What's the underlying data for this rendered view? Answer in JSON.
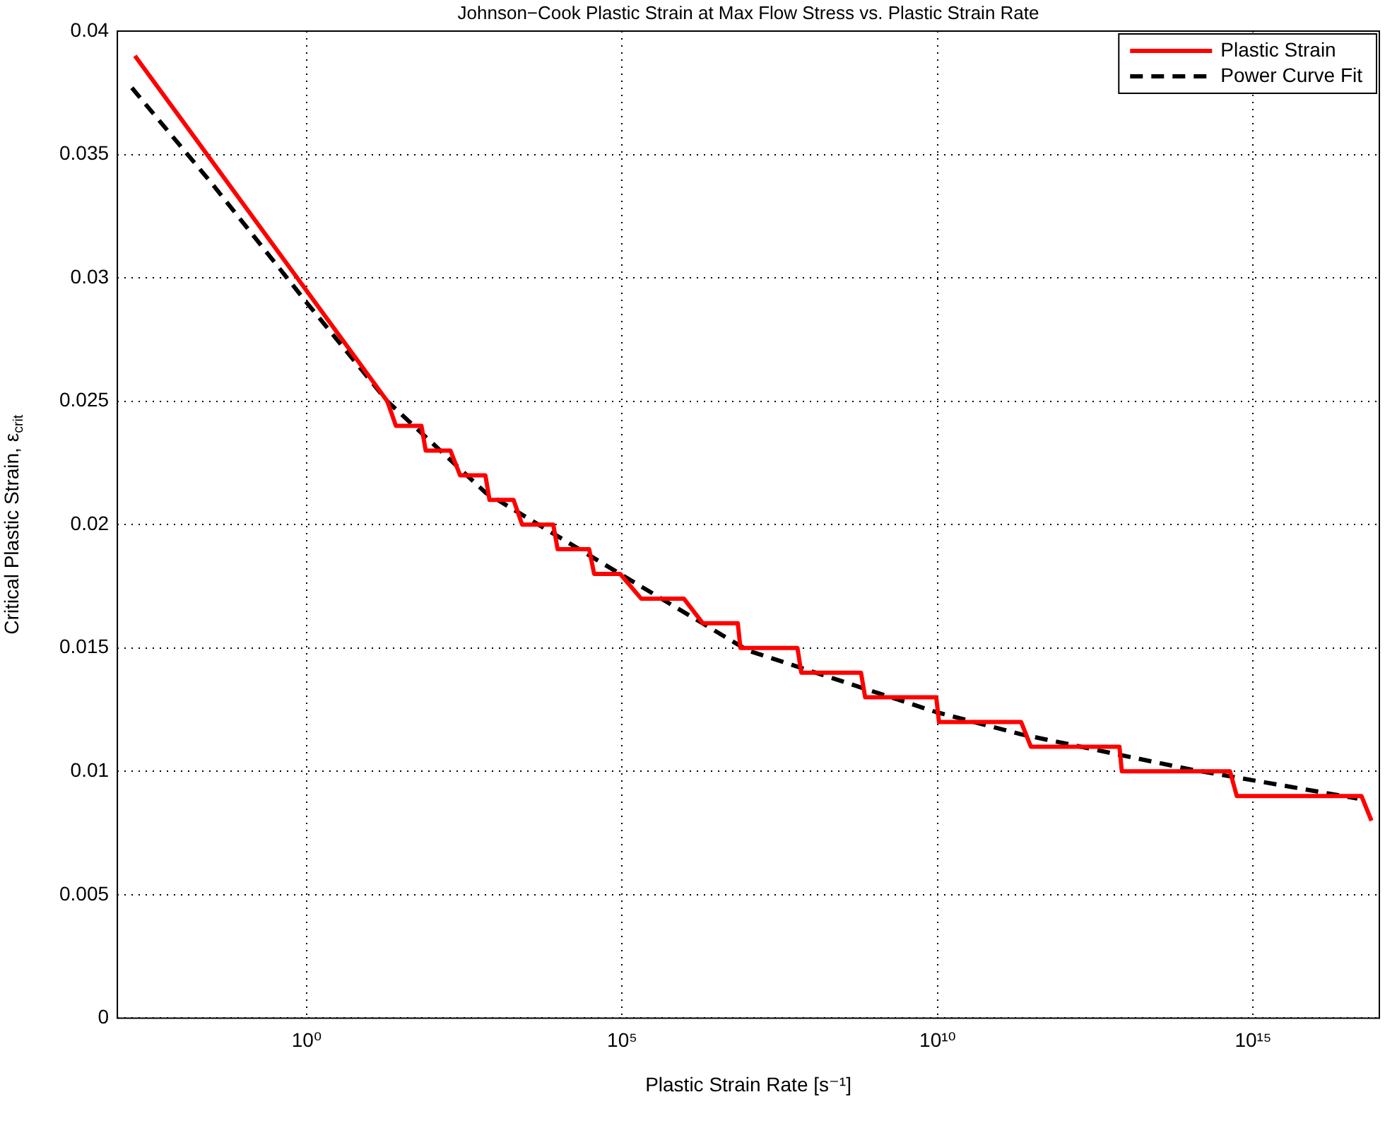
{
  "chart_data": {
    "type": "line",
    "title": "Johnson−Cook Plastic Strain at Max Flow Stress vs. Plastic Strain Rate",
    "xlabel": "Plastic Strain Rate [s⁻¹]",
    "ylabel": "Critical Plastic Strain, ε$_{crit}$",
    "log": "x",
    "grid": true,
    "legend": "top right",
    "xlim": [
      0.001,
      1e+17
    ],
    "xticks": [
      {
        "value": 1,
        "label": "10⁰"
      },
      {
        "value": 100000,
        "label": "10⁵"
      },
      {
        "value": 10000000000,
        "label": "10¹⁰"
      },
      {
        "value": 1000000000000000,
        "label": "10¹⁵"
      }
    ],
    "ylim": [
      0,
      0.04
    ],
    "yticks": [
      0,
      0.005,
      0.01,
      0.015,
      0.02,
      0.025,
      0.03,
      0.035,
      0.04
    ],
    "series": [
      {
        "name": "Plastic Strain",
        "color": "#ff0000",
        "line_style": "solid",
        "x": [
          0.0019,
          19,
          26,
          66,
          77,
          190,
          270,
          680,
          790,
          1900,
          2600,
          8100,
          9500,
          30000,
          36000,
          93000,
          200000,
          950000,
          1900000,
          6800000,
          7500000,
          60000000,
          69000000,
          610000000,
          710000000,
          9500000000,
          10500000000,
          210000000000,
          300000000000,
          7600000000000,
          8300000000000,
          430000000000000,
          550000000000000,
          52000000000000000,
          75000000000000000
        ],
        "values": [
          0.039,
          0.025,
          0.024,
          0.024,
          0.023,
          0.023,
          0.022,
          0.022,
          0.021,
          0.021,
          0.02,
          0.02,
          0.019,
          0.019,
          0.018,
          0.018,
          0.017,
          0.017,
          0.016,
          0.016,
          0.015,
          0.015,
          0.014,
          0.014,
          0.013,
          0.013,
          0.012,
          0.012,
          0.011,
          0.011,
          0.01,
          0.01,
          0.009,
          0.009,
          0.008
        ]
      },
      {
        "name": "Power Curve Fit",
        "color": "#000000",
        "line_style": "dashed",
        "x": [
          0.0017,
          0.032,
          1,
          19,
          680,
          93000,
          9800000,
          9500000000,
          210000000000,
          91000000000000,
          45000000000000000
        ],
        "values": [
          0.0377,
          0.0338,
          0.029,
          0.025,
          0.0213,
          0.018,
          0.0149,
          0.0124,
          0.0115,
          0.0101,
          0.0089
        ]
      }
    ]
  }
}
